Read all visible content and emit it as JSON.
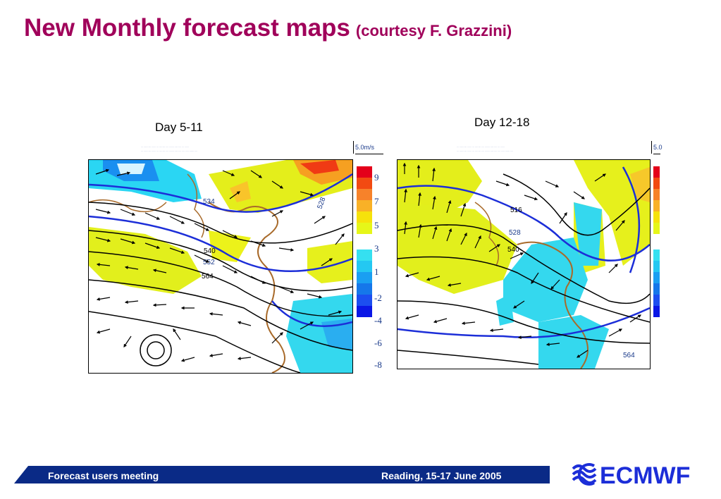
{
  "slide": {
    "title": "New Monthly forecast maps",
    "subtitle": "(courtesy F. Grazzini)"
  },
  "maps": [
    {
      "label": "Day 5-11",
      "wind_ref": "5.0m/s",
      "colorbar": [
        "9",
        "7",
        "5",
        "3",
        "1",
        "-2",
        "-4",
        "-6",
        "-8"
      ]
    },
    {
      "label": "Day 12-18",
      "wind_ref": "5.0",
      "colorbar": []
    }
  ],
  "footer": {
    "left_text": "Forecast users meeting",
    "right_text": "Reading, 15-17 June 2005",
    "logo_text": "ECMWF",
    "bar_color": "#0a2a86"
  },
  "colors": {
    "title": "#a0005a",
    "positive_scale": [
      "#e4001a",
      "#f24a12",
      "#f7822a",
      "#f9b127",
      "#f6e20b",
      "#e6f619"
    ],
    "negative_scale": [
      "#35e0f0",
      "#24c8f2",
      "#1a9ff2",
      "#1577ea",
      "#1c4ef0",
      "#0a17e6"
    ]
  }
}
